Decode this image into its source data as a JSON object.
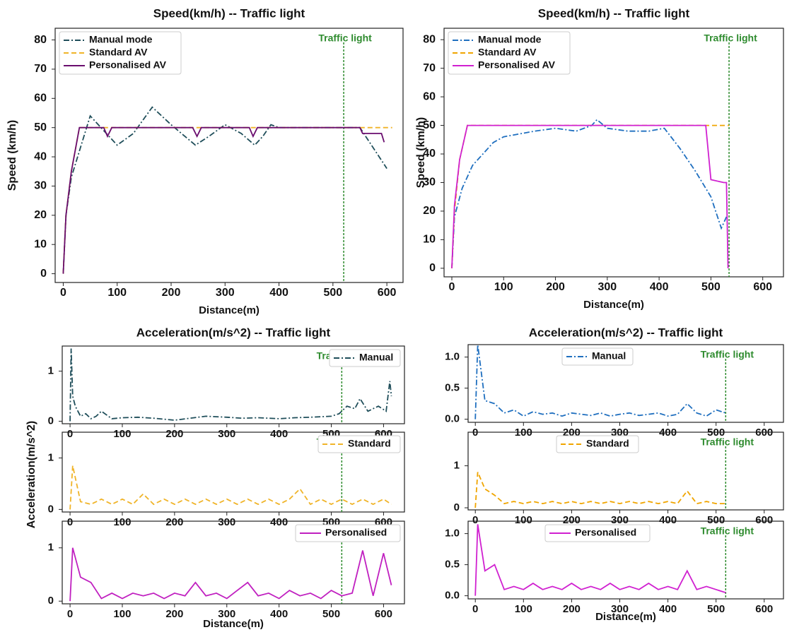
{
  "chart_data": [
    {
      "type": "line",
      "title": "Speed(km/h) -- Traffic light",
      "x_label": "Distance(m)",
      "y_label": "Speed (km/h)",
      "xlim": [
        -15,
        630
      ],
      "ylim": [
        -3,
        84
      ],
      "xticks": [
        0,
        100,
        200,
        300,
        400,
        500,
        600
      ],
      "yticks": [
        0,
        10,
        20,
        30,
        40,
        50,
        60,
        70,
        80
      ],
      "legend": "upper left",
      "annotation": {
        "text": "Traffic light",
        "x": 520,
        "color": "#2e8b2e"
      },
      "series": [
        {
          "name": "Manual mode",
          "color": "#1f4e5a",
          "style": "dashdot",
          "x": [
            0,
            5,
            15,
            30,
            50,
            70,
            100,
            130,
            165,
            200,
            245,
            270,
            300,
            330,
            355,
            370,
            385,
            400,
            550,
            600
          ],
          "values": [
            0,
            20,
            33,
            42,
            54,
            50,
            44,
            48,
            57,
            51,
            44,
            47,
            51,
            48,
            44,
            47,
            51,
            50,
            50,
            36
          ]
        },
        {
          "name": "Standard AV",
          "color": "#f0b429",
          "style": "dashed",
          "x": [
            0,
            5,
            15,
            30,
            610
          ],
          "values": [
            0,
            20,
            35,
            50,
            50
          ]
        },
        {
          "name": "Personalised AV",
          "color": "#6a0d6e",
          "style": "solid",
          "x": [
            0,
            5,
            15,
            30,
            75,
            82,
            90,
            240,
            248,
            256,
            345,
            352,
            360,
            550,
            555,
            590,
            595
          ],
          "values": [
            0,
            20,
            35,
            50,
            50,
            47,
            50,
            50,
            47,
            50,
            50,
            47,
            50,
            50,
            48,
            48,
            45
          ]
        }
      ]
    },
    {
      "type": "line",
      "title": "Speed(km/h) -- Traffic light",
      "x_label": "Distance(m)",
      "y_label": "Speed (km/h)",
      "xlim": [
        -15,
        640
      ],
      "ylim": [
        -3,
        84
      ],
      "xticks": [
        0,
        100,
        200,
        300,
        400,
        500,
        600
      ],
      "yticks": [
        0,
        10,
        20,
        30,
        40,
        50,
        60,
        70,
        80
      ],
      "legend": "upper left",
      "annotation": {
        "text": "Traffic light",
        "x": 535,
        "color": "#2e8b2e"
      },
      "series": [
        {
          "name": "Manual mode",
          "color": "#1f6fbf",
          "style": "dashdot",
          "x": [
            0,
            5,
            20,
            40,
            60,
            80,
            100,
            130,
            160,
            200,
            240,
            270,
            280,
            300,
            340,
            380,
            410,
            440,
            470,
            500,
            520,
            530
          ],
          "values": [
            0,
            18,
            28,
            36,
            40,
            44,
            46,
            47,
            48,
            49,
            48,
            50,
            52,
            49,
            48,
            48,
            49,
            42,
            34,
            25,
            14,
            18
          ]
        },
        {
          "name": "Standard AV",
          "color": "#f0a500",
          "style": "dashed",
          "x": [
            0,
            5,
            15,
            30,
            535
          ],
          "values": [
            0,
            20,
            38,
            50,
            50
          ]
        },
        {
          "name": "Personalised AV",
          "color": "#d020d0",
          "style": "solid",
          "x": [
            0,
            5,
            15,
            30,
            490,
            500,
            525,
            530,
            533
          ],
          "values": [
            0,
            22,
            38,
            50,
            50,
            31,
            30,
            30,
            0
          ]
        }
      ]
    },
    {
      "type": "line",
      "title": "Acceleration(m/s^2) -- Traffic light",
      "xlim": [
        -15,
        640
      ],
      "ylim": [
        -0.05,
        1.5
      ],
      "xticks": [
        0,
        100,
        200,
        300,
        400,
        500,
        600
      ],
      "yticks": [
        0,
        1
      ],
      "legend": "upper right",
      "annotation": {
        "text": "Traffic light",
        "x": 520,
        "color": "#2e8b2e"
      },
      "series": [
        {
          "name": "Manual",
          "color": "#1f4e5a",
          "style": "dashdot",
          "x": [
            0,
            2,
            5,
            10,
            15,
            20,
            30,
            40,
            50,
            60,
            80,
            100,
            130,
            160,
            200,
            230,
            260,
            300,
            330,
            360,
            400,
            430,
            460,
            500,
            515,
            530,
            545,
            555,
            570,
            590,
            605,
            612,
            615
          ],
          "values": [
            0,
            1.45,
            0.5,
            0.3,
            0.2,
            0.1,
            0.15,
            0.05,
            0.1,
            0.2,
            0.05,
            0.07,
            0.08,
            0.06,
            0.02,
            0.06,
            0.1,
            0.08,
            0.06,
            0.07,
            0.05,
            0.07,
            0.08,
            0.1,
            0.15,
            0.3,
            0.25,
            0.45,
            0.2,
            0.3,
            0.2,
            0.8,
            0.5
          ]
        }
      ]
    },
    {
      "type": "line",
      "y_label": "Acceleration(m/s^2)",
      "xlim": [
        -15,
        640
      ],
      "ylim": [
        -0.05,
        1.5
      ],
      "xticks": [
        0,
        100,
        200,
        300,
        400,
        500,
        600
      ],
      "yticks": [
        0,
        1
      ],
      "legend": "upper right",
      "annotation": {
        "text": "Traffic light",
        "x": 520,
        "color": "#2e8b2e"
      },
      "series": [
        {
          "name": "Standard",
          "color": "#f0b429",
          "style": "dashed",
          "x": [
            0,
            5,
            20,
            40,
            60,
            80,
            100,
            120,
            140,
            160,
            180,
            200,
            220,
            240,
            260,
            280,
            300,
            320,
            340,
            360,
            380,
            400,
            420,
            440,
            460,
            480,
            500,
            520,
            540,
            560,
            580,
            600,
            615
          ],
          "values": [
            0,
            0.85,
            0.15,
            0.1,
            0.2,
            0.1,
            0.2,
            0.1,
            0.3,
            0.1,
            0.2,
            0.1,
            0.2,
            0.1,
            0.2,
            0.1,
            0.2,
            0.1,
            0.2,
            0.1,
            0.2,
            0.1,
            0.2,
            0.4,
            0.1,
            0.2,
            0.1,
            0.2,
            0.1,
            0.2,
            0.1,
            0.2,
            0.1
          ]
        }
      ]
    },
    {
      "type": "line",
      "x_label": "Distance(m)",
      "xlim": [
        -15,
        640
      ],
      "ylim": [
        -0.05,
        1.5
      ],
      "xticks": [
        0,
        100,
        200,
        300,
        400,
        500,
        600
      ],
      "yticks": [
        0,
        1
      ],
      "legend": "upper right",
      "annotation": {
        "text": "Traffic light",
        "x": 520,
        "color": "#2e8b2e"
      },
      "series": [
        {
          "name": "Personalised",
          "color": "#c020c0",
          "style": "solid",
          "x": [
            0,
            5,
            20,
            40,
            60,
            80,
            100,
            120,
            140,
            160,
            180,
            200,
            220,
            240,
            260,
            280,
            300,
            320,
            340,
            360,
            380,
            400,
            420,
            440,
            460,
            480,
            500,
            520,
            540,
            560,
            580,
            600,
            615
          ],
          "values": [
            0,
            1.0,
            0.45,
            0.35,
            0.05,
            0.15,
            0.05,
            0.15,
            0.1,
            0.15,
            0.05,
            0.15,
            0.1,
            0.35,
            0.1,
            0.15,
            0.05,
            0.2,
            0.35,
            0.1,
            0.15,
            0.05,
            0.2,
            0.1,
            0.15,
            0.05,
            0.2,
            0.1,
            0.15,
            0.95,
            0.1,
            0.9,
            0.3
          ]
        }
      ]
    },
    {
      "type": "line",
      "title": "Acceleration(m/s^2) -- Traffic light",
      "xlim": [
        -15,
        640
      ],
      "ylim": [
        -0.05,
        1.2
      ],
      "xticks": [
        0,
        100,
        200,
        300,
        400,
        500,
        600
      ],
      "yticks": [
        {
          "value": 0,
          "label": "0.0"
        },
        {
          "value": 0.5,
          "label": "0.5"
        },
        {
          "value": 1,
          "label": "1.0"
        }
      ],
      "legend": "upper center",
      "annotation": {
        "text": "Traffic light",
        "x": 520,
        "color": "#2e8b2e"
      },
      "series": [
        {
          "name": "Manual",
          "color": "#1f6fbf",
          "style": "dashdot",
          "x": [
            0,
            5,
            20,
            40,
            60,
            80,
            100,
            120,
            140,
            160,
            180,
            200,
            220,
            240,
            260,
            280,
            300,
            320,
            340,
            360,
            380,
            400,
            420,
            440,
            460,
            480,
            500,
            520
          ],
          "values": [
            0,
            1.2,
            0.3,
            0.25,
            0.1,
            0.15,
            0.05,
            0.12,
            0.08,
            0.1,
            0.05,
            0.1,
            0.08,
            0.06,
            0.1,
            0.05,
            0.08,
            0.1,
            0.06,
            0.08,
            0.1,
            0.05,
            0.08,
            0.25,
            0.1,
            0.05,
            0.15,
            0.1
          ]
        }
      ]
    },
    {
      "type": "line",
      "xlim": [
        -15,
        640
      ],
      "ylim": [
        -0.05,
        1.8
      ],
      "xticks": [
        0,
        100,
        200,
        300,
        400,
        500,
        600
      ],
      "yticks": [
        0,
        1
      ],
      "legend": "upper center",
      "annotation": {
        "text": "Traffic light",
        "x": 520,
        "color": "#2e8b2e"
      },
      "series": [
        {
          "name": "Standard",
          "color": "#f0a500",
          "style": "dashed",
          "x": [
            0,
            5,
            20,
            40,
            60,
            80,
            100,
            120,
            140,
            160,
            180,
            200,
            220,
            240,
            260,
            280,
            300,
            320,
            340,
            360,
            380,
            400,
            420,
            440,
            460,
            480,
            500,
            520
          ],
          "values": [
            0,
            0.85,
            0.45,
            0.3,
            0.1,
            0.15,
            0.1,
            0.15,
            0.1,
            0.15,
            0.1,
            0.15,
            0.1,
            0.15,
            0.1,
            0.15,
            0.1,
            0.15,
            0.1,
            0.15,
            0.1,
            0.15,
            0.1,
            0.4,
            0.1,
            0.15,
            0.1,
            0.1
          ]
        }
      ]
    },
    {
      "type": "line",
      "x_label": "Distance(m)",
      "xlim": [
        -15,
        640
      ],
      "ylim": [
        -0.05,
        1.2
      ],
      "xticks": [
        0,
        100,
        200,
        300,
        400,
        500,
        600
      ],
      "yticks": [
        {
          "value": 0,
          "label": "0.0"
        },
        {
          "value": 0.5,
          "label": "0.5"
        },
        {
          "value": 1,
          "label": "1.0"
        }
      ],
      "legend": "upper center",
      "annotation": {
        "text": "Traffic light",
        "x": 520,
        "color": "#2e8b2e"
      },
      "series": [
        {
          "name": "Personalised",
          "color": "#d020d0",
          "style": "solid",
          "x": [
            0,
            5,
            20,
            40,
            60,
            80,
            100,
            120,
            140,
            160,
            180,
            200,
            220,
            240,
            260,
            280,
            300,
            320,
            340,
            360,
            380,
            400,
            420,
            440,
            460,
            480,
            500,
            520
          ],
          "values": [
            0,
            1.15,
            0.4,
            0.5,
            0.1,
            0.15,
            0.1,
            0.2,
            0.1,
            0.15,
            0.1,
            0.2,
            0.1,
            0.15,
            0.1,
            0.2,
            0.1,
            0.15,
            0.1,
            0.2,
            0.1,
            0.15,
            0.1,
            0.4,
            0.1,
            0.15,
            0.1,
            0.05
          ]
        }
      ]
    }
  ]
}
